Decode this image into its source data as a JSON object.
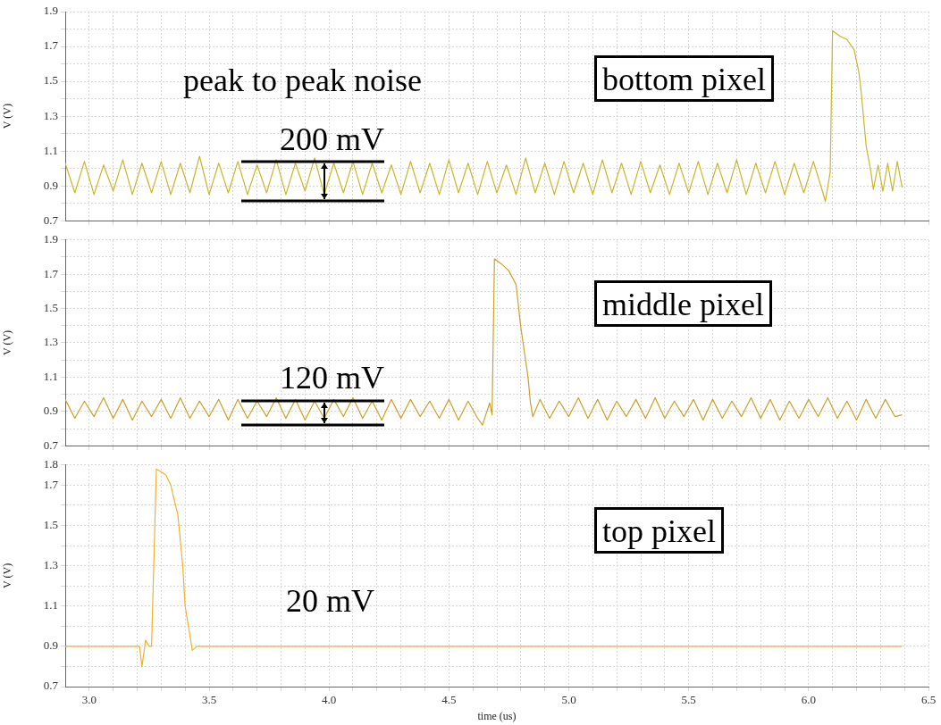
{
  "chart_data": [
    {
      "type": "line",
      "ylabel": "V (V)",
      "annotations": [
        "peak to peak noise",
        "200 mV",
        "bottom pixel"
      ],
      "grid": true,
      "tick_labels": "y",
      "xlim": [
        2.9,
        6.5
      ],
      "ylim": [
        0.7,
        1.9
      ],
      "xticks": [
        {
          "value": 3,
          "label": null
        },
        {
          "value": 3.1,
          "label": null
        },
        {
          "value": 3.2,
          "label": null
        },
        {
          "value": 3.3,
          "label": null
        },
        {
          "value": 3.4,
          "label": null
        },
        {
          "value": 3.5,
          "label": null
        },
        {
          "value": 3.6,
          "label": null
        },
        {
          "value": 3.7,
          "label": null
        },
        {
          "value": 3.8,
          "label": null
        },
        {
          "value": 3.9,
          "label": null
        },
        {
          "value": 4,
          "label": null
        },
        {
          "value": 4.1,
          "label": null
        },
        {
          "value": 4.2,
          "label": null
        },
        {
          "value": 4.3,
          "label": null
        },
        {
          "value": 4.4,
          "label": null
        },
        {
          "value": 4.5,
          "label": null
        },
        {
          "value": 4.6,
          "label": null
        },
        {
          "value": 4.7,
          "label": null
        },
        {
          "value": 4.8,
          "label": null
        },
        {
          "value": 4.9,
          "label": null
        },
        {
          "value": 5,
          "label": null
        },
        {
          "value": 5.1,
          "label": null
        },
        {
          "value": 5.2,
          "label": null
        },
        {
          "value": 5.3,
          "label": null
        },
        {
          "value": 5.4,
          "label": null
        },
        {
          "value": 5.5,
          "label": null
        },
        {
          "value": 5.6,
          "label": null
        },
        {
          "value": 5.7,
          "label": null
        },
        {
          "value": 5.8,
          "label": null
        },
        {
          "value": 5.9,
          "label": null
        },
        {
          "value": 6,
          "label": null
        },
        {
          "value": 6.1,
          "label": null
        },
        {
          "value": 6.2,
          "label": null
        },
        {
          "value": 6.3,
          "label": null
        },
        {
          "value": 6.4,
          "label": null
        },
        {
          "value": 6.5,
          "label": null
        }
      ],
      "yticks": [
        0.7,
        {
          "value": 0.8,
          "label": null
        },
        0.9,
        {
          "value": 1.0,
          "label": null
        },
        1.1,
        {
          "value": 1.2,
          "label": null
        },
        1.3,
        {
          "value": 1.4,
          "label": null
        },
        1.5,
        {
          "value": 1.6,
          "label": null
        },
        1.7,
        {
          "value": 1.8,
          "label": null
        },
        1.9
      ],
      "series": [
        {
          "color": "#c9b62a",
          "x": [
            2.9,
            2.94,
            2.98,
            3.02,
            3.06,
            3.1,
            3.14,
            3.18,
            3.22,
            3.26,
            3.3,
            3.34,
            3.38,
            3.42,
            3.46,
            3.5,
            3.54,
            3.58,
            3.62,
            3.66,
            3.7,
            3.74,
            3.78,
            3.82,
            3.86,
            3.9,
            3.94,
            3.98,
            4.02,
            4.06,
            4.1,
            4.14,
            4.18,
            4.22,
            4.26,
            4.3,
            4.34,
            4.38,
            4.42,
            4.46,
            4.5,
            4.54,
            4.58,
            4.62,
            4.66,
            4.7,
            4.74,
            4.78,
            4.82,
            4.86,
            4.9,
            4.94,
            4.98,
            5.02,
            5.06,
            5.1,
            5.14,
            5.18,
            5.22,
            5.26,
            5.3,
            5.34,
            5.38,
            5.42,
            5.46,
            5.5,
            5.54,
            5.58,
            5.62,
            5.66,
            5.7,
            5.74,
            5.78,
            5.82,
            5.86,
            5.9,
            5.94,
            5.98,
            6.02,
            6.06,
            6.07,
            6.09,
            6.1,
            6.13,
            6.16,
            6.19,
            6.21,
            6.22,
            6.24,
            6.26,
            6.27,
            6.29,
            6.31,
            6.33,
            6.35,
            6.37,
            6.39
          ],
          "values": [
            1.03,
            0.86,
            1.04,
            0.85,
            1.02,
            0.87,
            1.05,
            0.85,
            1.03,
            0.86,
            1.04,
            0.85,
            1.03,
            0.86,
            1.07,
            0.85,
            1.03,
            0.86,
            1.04,
            0.85,
            1.02,
            0.86,
            1.05,
            0.85,
            1.03,
            0.87,
            1.06,
            0.85,
            1.03,
            0.86,
            1.04,
            0.85,
            1.03,
            0.86,
            1.02,
            0.85,
            1.04,
            0.86,
            1.03,
            0.85,
            1.05,
            0.86,
            1.03,
            0.85,
            1.04,
            0.86,
            1.02,
            0.85,
            1.06,
            0.86,
            1.03,
            0.85,
            1.04,
            0.86,
            1.03,
            0.85,
            1.05,
            0.86,
            1.03,
            0.85,
            1.04,
            0.86,
            1.02,
            0.85,
            1.03,
            0.86,
            1.04,
            0.85,
            1.03,
            0.86,
            1.05,
            0.85,
            1.03,
            0.86,
            1.04,
            0.85,
            1.03,
            0.86,
            1.04,
            0.86,
            0.81,
            0.98,
            1.79,
            1.76,
            1.74,
            1.68,
            1.55,
            1.43,
            1.13,
            0.98,
            0.88,
            1.02,
            0.87,
            1.03,
            0.87,
            1.04,
            0.89
          ]
        }
      ]
    },
    {
      "type": "line",
      "ylabel": "V (V)",
      "annotations": [
        "120 mV",
        "middle pixel"
      ],
      "grid": true,
      "tick_labels": "y",
      "xlim": [
        2.9,
        6.5
      ],
      "ylim": [
        0.7,
        1.9
      ],
      "xticks": [
        {
          "value": 3,
          "label": null
        },
        {
          "value": 3.1,
          "label": null
        },
        {
          "value": 3.2,
          "label": null
        },
        {
          "value": 3.3,
          "label": null
        },
        {
          "value": 3.4,
          "label": null
        },
        {
          "value": 3.5,
          "label": null
        },
        {
          "value": 3.6,
          "label": null
        },
        {
          "value": 3.7,
          "label": null
        },
        {
          "value": 3.8,
          "label": null
        },
        {
          "value": 3.9,
          "label": null
        },
        {
          "value": 4,
          "label": null
        },
        {
          "value": 4.1,
          "label": null
        },
        {
          "value": 4.2,
          "label": null
        },
        {
          "value": 4.3,
          "label": null
        },
        {
          "value": 4.4,
          "label": null
        },
        {
          "value": 4.5,
          "label": null
        },
        {
          "value": 4.6,
          "label": null
        },
        {
          "value": 4.7,
          "label": null
        },
        {
          "value": 4.8,
          "label": null
        },
        {
          "value": 4.9,
          "label": null
        },
        {
          "value": 5,
          "label": null
        },
        {
          "value": 5.1,
          "label": null
        },
        {
          "value": 5.2,
          "label": null
        },
        {
          "value": 5.3,
          "label": null
        },
        {
          "value": 5.4,
          "label": null
        },
        {
          "value": 5.5,
          "label": null
        },
        {
          "value": 5.6,
          "label": null
        },
        {
          "value": 5.7,
          "label": null
        },
        {
          "value": 5.8,
          "label": null
        },
        {
          "value": 5.9,
          "label": null
        },
        {
          "value": 6,
          "label": null
        },
        {
          "value": 6.1,
          "label": null
        },
        {
          "value": 6.2,
          "label": null
        },
        {
          "value": 6.3,
          "label": null
        },
        {
          "value": 6.4,
          "label": null
        },
        {
          "value": 6.5,
          "label": null
        }
      ],
      "yticks": [
        0.7,
        {
          "value": 0.8,
          "label": null
        },
        0.9,
        {
          "value": 1.0,
          "label": null
        },
        1.1,
        {
          "value": 1.2,
          "label": null
        },
        1.3,
        {
          "value": 1.4,
          "label": null
        },
        1.5,
        {
          "value": 1.6,
          "label": null
        },
        1.7,
        {
          "value": 1.8,
          "label": null
        },
        1.9
      ],
      "series": [
        {
          "color": "#c9a227",
          "x": [
            2.9,
            2.94,
            2.98,
            3.02,
            3.06,
            3.1,
            3.14,
            3.18,
            3.22,
            3.26,
            3.3,
            3.34,
            3.38,
            3.42,
            3.46,
            3.5,
            3.54,
            3.58,
            3.62,
            3.66,
            3.7,
            3.74,
            3.78,
            3.82,
            3.86,
            3.9,
            3.94,
            3.98,
            4.02,
            4.06,
            4.1,
            4.14,
            4.18,
            4.22,
            4.26,
            4.3,
            4.34,
            4.38,
            4.42,
            4.46,
            4.5,
            4.54,
            4.58,
            4.62,
            4.64,
            4.67,
            4.68,
            4.69,
            4.72,
            4.75,
            4.78,
            4.8,
            4.83,
            4.84,
            4.85,
            4.88,
            4.92,
            4.96,
            5.0,
            5.04,
            5.08,
            5.12,
            5.16,
            5.2,
            5.24,
            5.28,
            5.32,
            5.36,
            5.4,
            5.44,
            5.48,
            5.52,
            5.56,
            5.6,
            5.64,
            5.68,
            5.72,
            5.76,
            5.8,
            5.84,
            5.88,
            5.92,
            5.96,
            6.0,
            6.04,
            6.08,
            6.12,
            6.16,
            6.2,
            6.24,
            6.28,
            6.32,
            6.36,
            6.39
          ],
          "values": [
            0.97,
            0.86,
            0.96,
            0.87,
            0.98,
            0.86,
            0.97,
            0.85,
            0.96,
            0.87,
            0.97,
            0.86,
            0.98,
            0.86,
            0.96,
            0.87,
            0.97,
            0.85,
            0.97,
            0.86,
            0.96,
            0.87,
            0.98,
            0.86,
            0.97,
            0.85,
            0.96,
            0.86,
            0.97,
            0.87,
            0.98,
            0.86,
            0.96,
            0.85,
            0.97,
            0.86,
            0.97,
            0.87,
            0.96,
            0.86,
            0.97,
            0.85,
            0.96,
            0.86,
            0.82,
            0.95,
            0.88,
            1.79,
            1.76,
            1.72,
            1.64,
            1.39,
            1.1,
            0.95,
            0.87,
            0.97,
            0.86,
            0.96,
            0.87,
            0.98,
            0.86,
            0.97,
            0.85,
            0.96,
            0.87,
            0.97,
            0.86,
            0.98,
            0.86,
            0.96,
            0.87,
            0.97,
            0.85,
            0.97,
            0.86,
            0.96,
            0.87,
            0.98,
            0.86,
            0.97,
            0.85,
            0.96,
            0.86,
            0.97,
            0.87,
            0.98,
            0.86,
            0.96,
            0.85,
            0.97,
            0.86,
            0.97,
            0.87,
            0.88
          ]
        }
      ]
    },
    {
      "type": "line",
      "xlabel": "time (us)",
      "ylabel": "V (V)",
      "annotations": [
        "20 mV",
        "top pixel"
      ],
      "grid": true,
      "xlim": [
        2.9,
        6.5
      ],
      "ylim": [
        0.7,
        1.8
      ],
      "xticks": [
        {
          "value": 3,
          "label": "3.0"
        },
        {
          "value": 3.1,
          "label": null
        },
        {
          "value": 3.2,
          "label": null
        },
        {
          "value": 3.3,
          "label": null
        },
        {
          "value": 3.4,
          "label": null
        },
        3.5,
        {
          "value": 3.6,
          "label": null
        },
        {
          "value": 3.7,
          "label": null
        },
        {
          "value": 3.8,
          "label": null
        },
        {
          "value": 3.9,
          "label": null
        },
        {
          "value": 4,
          "label": "4.0"
        },
        {
          "value": 4.1,
          "label": null
        },
        {
          "value": 4.2,
          "label": null
        },
        {
          "value": 4.3,
          "label": null
        },
        {
          "value": 4.4,
          "label": null
        },
        4.5,
        {
          "value": 4.6,
          "label": null
        },
        {
          "value": 4.7,
          "label": null
        },
        {
          "value": 4.8,
          "label": null
        },
        {
          "value": 4.9,
          "label": null
        },
        {
          "value": 5,
          "label": "5.0"
        },
        {
          "value": 5.1,
          "label": null
        },
        {
          "value": 5.2,
          "label": null
        },
        {
          "value": 5.3,
          "label": null
        },
        {
          "value": 5.4,
          "label": null
        },
        5.5,
        {
          "value": 5.6,
          "label": null
        },
        {
          "value": 5.7,
          "label": null
        },
        {
          "value": 5.8,
          "label": null
        },
        {
          "value": 5.9,
          "label": null
        },
        {
          "value": 6,
          "label": "6.0"
        },
        {
          "value": 6.1,
          "label": null
        },
        {
          "value": 6.2,
          "label": null
        },
        {
          "value": 6.3,
          "label": null
        },
        {
          "value": 6.4,
          "label": null
        },
        6.5
      ],
      "yticks": [
        0.7,
        {
          "value": 0.8,
          "label": null
        },
        0.9,
        {
          "value": 1.0,
          "label": null
        },
        1.1,
        {
          "value": 1.2,
          "label": null
        },
        1.3,
        {
          "value": 1.4,
          "label": null
        },
        1.5,
        {
          "value": 1.6,
          "label": null
        },
        1.7,
        1.8
      ],
      "series": [
        {
          "color": "#f0b030",
          "x": [
            2.9,
            3.21,
            3.22,
            3.235,
            3.25,
            3.26,
            3.28,
            3.32,
            3.34,
            3.35,
            3.37,
            3.39,
            3.4,
            3.43,
            3.45,
            6.39
          ],
          "values": [
            0.9,
            0.9,
            0.8,
            0.93,
            0.9,
            0.9,
            1.78,
            1.75,
            1.7,
            1.65,
            1.55,
            1.3,
            1.1,
            0.88,
            0.9,
            0.9
          ]
        }
      ]
    }
  ]
}
